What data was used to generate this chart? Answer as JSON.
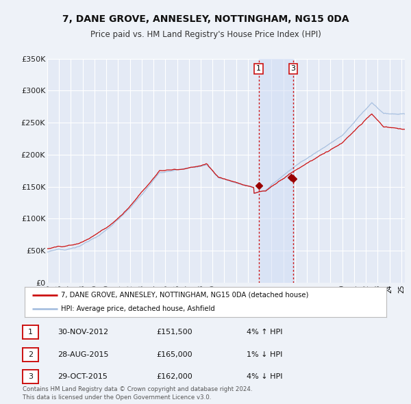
{
  "title": "7, DANE GROVE, ANNESLEY, NOTTINGHAM, NG15 0DA",
  "subtitle": "Price paid vs. HM Land Registry's House Price Index (HPI)",
  "background_color": "#eef2f8",
  "plot_bg_color": "#e4eaf5",
  "grid_color": "#ffffff",
  "hpi_line_color": "#a8c0e0",
  "price_line_color": "#cc1111",
  "ylim": [
    0,
    350000
  ],
  "yticks": [
    0,
    50000,
    100000,
    150000,
    200000,
    250000,
    300000,
    350000
  ],
  "ytick_labels": [
    "£0",
    "£50K",
    "£100K",
    "£150K",
    "£200K",
    "£250K",
    "£300K",
    "£350K"
  ],
  "transaction_markers": [
    {
      "label": "1",
      "date_num": 2012.92,
      "price": 151500,
      "color": "#990000"
    },
    {
      "label": "2",
      "date_num": 2015.65,
      "price": 165000,
      "color": "#990000"
    },
    {
      "label": "3",
      "date_num": 2015.83,
      "price": 162000,
      "color": "#990000"
    }
  ],
  "vlines": [
    2012.92,
    2015.83
  ],
  "vline_labels": [
    "1",
    "3"
  ],
  "vline_color": "#cc1111",
  "legend_label_price": "7, DANE GROVE, ANNESLEY, NOTTINGHAM, NG15 0DA (detached house)",
  "legend_label_hpi": "HPI: Average price, detached house, Ashfield",
  "table_rows": [
    {
      "num": "1",
      "date": "30-NOV-2012",
      "price": "£151,500",
      "hpi": "4% ↑ HPI"
    },
    {
      "num": "2",
      "date": "28-AUG-2015",
      "price": "£165,000",
      "hpi": "1% ↓ HPI"
    },
    {
      "num": "3",
      "date": "29-OCT-2015",
      "price": "£162,000",
      "hpi": "4% ↓ HPI"
    }
  ],
  "footer": "Contains HM Land Registry data © Crown copyright and database right 2024.\nThis data is licensed under the Open Government Licence v3.0.",
  "xlim_start": 1995,
  "xlim_end": 2025.3
}
